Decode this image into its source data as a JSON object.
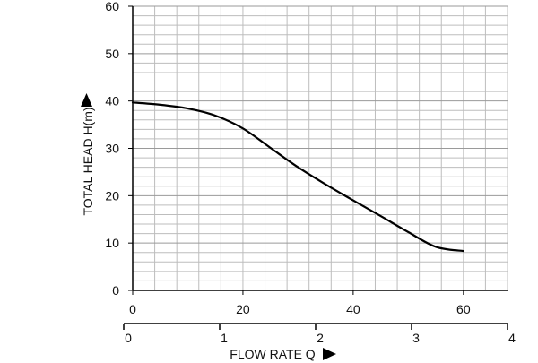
{
  "chart_data": {
    "type": "line",
    "xlabel": "FLOW RATE Q",
    "ylabel": "TOTAL HEAD H(m)",
    "xlim": [
      0,
      68
    ],
    "ylim": [
      0,
      60
    ],
    "x_ticks": [
      "0",
      "20",
      "40",
      "60"
    ],
    "y_ticks": [
      "0",
      "10",
      "20",
      "30",
      "40",
      "50",
      "60"
    ],
    "x_ticks_secondary": [
      "0",
      "1",
      "2",
      "3",
      "4"
    ],
    "grid": true,
    "series": [
      {
        "x": [
          0,
          5,
          10,
          15,
          20,
          25,
          30,
          35,
          40,
          45,
          50,
          55,
          60
        ],
        "y": [
          39.7,
          39.2,
          38.4,
          36.9,
          34.2,
          30.1,
          26.0,
          22.4,
          19.0,
          15.7,
          12.3,
          9.2,
          8.3
        ],
        "color": "#000000"
      }
    ],
    "colors": {
      "grid": "#bdbdbd",
      "axis": "#000000",
      "curve": "#000000"
    }
  }
}
